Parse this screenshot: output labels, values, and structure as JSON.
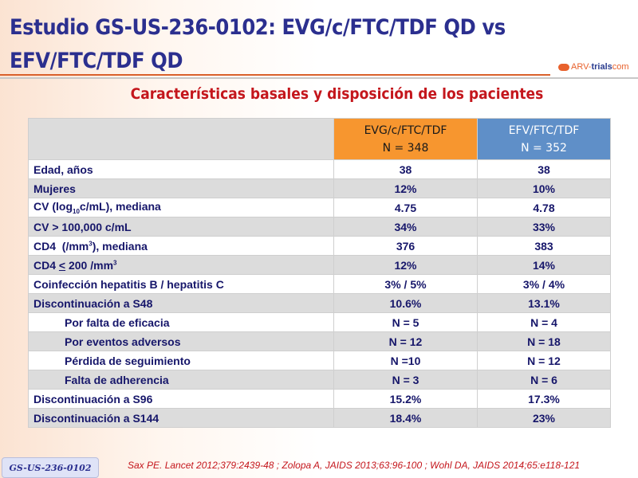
{
  "title": "Estudio GS-US-236-0102: EVG/c/FTC/TDF QD vs EFV/FTC/TDF QD",
  "logo": {
    "part1": "ARV-",
    "part2": "trials",
    "part3": "com"
  },
  "subtitle": "Características basales y disposición de los pacientes",
  "headers": [
    {
      "line1": "EVG/c/FTC/TDF",
      "line2": "N = 348"
    },
    {
      "line1": "EFV/FTC/TDF",
      "line2": "N = 352"
    }
  ],
  "colors": {
    "orange": "#f7962f",
    "blue": "#5f8fc8",
    "title": "#2b2f8f",
    "red": "#c4161c"
  },
  "rows": [
    {
      "label": [
        {
          "t": "Edad, años"
        }
      ],
      "a": "38",
      "b": "38"
    },
    {
      "label": [
        {
          "t": "Mujeres"
        }
      ],
      "a": "12%",
      "b": "10%"
    },
    {
      "label": [
        {
          "t": "CV (log"
        },
        {
          "t": "10",
          "s": "sub"
        },
        {
          "t": "c/mL), mediana"
        }
      ],
      "a": "4.75",
      "b": "4.78"
    },
    {
      "label": [
        {
          "t": "CV > 100,000 c/mL"
        }
      ],
      "a": "34%",
      "b": "33%"
    },
    {
      "label": [
        {
          "t": "CD4  (/mm"
        },
        {
          "t": "3",
          "s": "sup"
        },
        {
          "t": "), mediana"
        }
      ],
      "a": "376",
      "b": "383"
    },
    {
      "label": [
        {
          "t": "CD4 "
        },
        {
          "t": "<",
          "s": "u"
        },
        {
          "t": " 200 /mm"
        },
        {
          "t": "3",
          "s": "sup"
        }
      ],
      "a": "12%",
      "b": "14%"
    },
    {
      "label": [
        {
          "t": "Coinfección hepatitis B / hepatitis C"
        }
      ],
      "a": "3% / 5%",
      "b": "3% / 4%"
    },
    {
      "label": [
        {
          "t": "Discontinuación a S48"
        }
      ],
      "a": "10.6%",
      "b": "13.1%"
    },
    {
      "label": [
        {
          "t": "Por falta de eficacia"
        }
      ],
      "a": "N = 5",
      "b": "N = 4",
      "indent": true
    },
    {
      "label": [
        {
          "t": "Por eventos adversos"
        }
      ],
      "a": "N = 12",
      "b": "N = 18",
      "indent": true
    },
    {
      "label": [
        {
          "t": "Pérdida de seguimiento"
        }
      ],
      "a": "N =10",
      "b": "N = 12",
      "indent": true
    },
    {
      "label": [
        {
          "t": "Falta de adherencia"
        }
      ],
      "a": "N = 3",
      "b": "N = 6",
      "indent": true
    },
    {
      "label": [
        {
          "t": "Discontinuación a S96"
        }
      ],
      "a": "15.2%",
      "b": "17.3%"
    },
    {
      "label": [
        {
          "t": "Discontinuación a S144"
        }
      ],
      "a": "18.4%",
      "b": "23%"
    }
  ],
  "badge": "GS-US-236-0102",
  "reference": "Sax PE. Lancet 2012;379:2439-48 ; Zolopa A, JAIDS 2013;63:96-100 ; Wohl DA, JAIDS 2014;65:e118-121"
}
